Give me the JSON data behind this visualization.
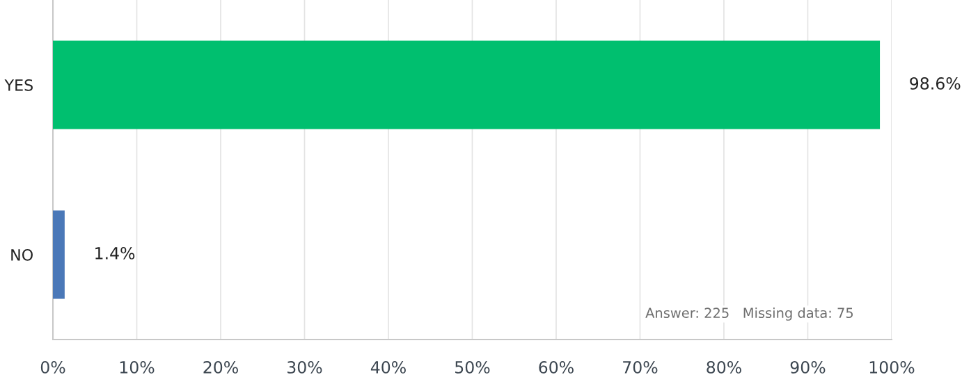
{
  "chart_data": {
    "type": "bar",
    "orientation": "horizontal",
    "categories": [
      "YES",
      "NO"
    ],
    "values": [
      98.6,
      1.4
    ],
    "colors": [
      "#00bf6f",
      "#4a78b8"
    ],
    "value_labels": [
      "98.6%",
      "1.4%"
    ],
    "xlim": [
      0,
      100
    ],
    "xticks": [
      {
        "value": 0,
        "label": "0%"
      },
      {
        "value": 10,
        "label": "10%"
      },
      {
        "value": 20,
        "label": "20%"
      },
      {
        "value": 30,
        "label": "30%"
      },
      {
        "value": 40,
        "label": "40%"
      },
      {
        "value": 50,
        "label": "50%"
      },
      {
        "value": 60,
        "label": "60%"
      },
      {
        "value": 70,
        "label": "70%"
      },
      {
        "value": 80,
        "label": "80%"
      },
      {
        "value": 90,
        "label": "90%"
      },
      {
        "value": 100,
        "label": "100%"
      }
    ],
    "grid": "x",
    "annotations": [
      "Answer: 225   Missing data: 75"
    ]
  }
}
